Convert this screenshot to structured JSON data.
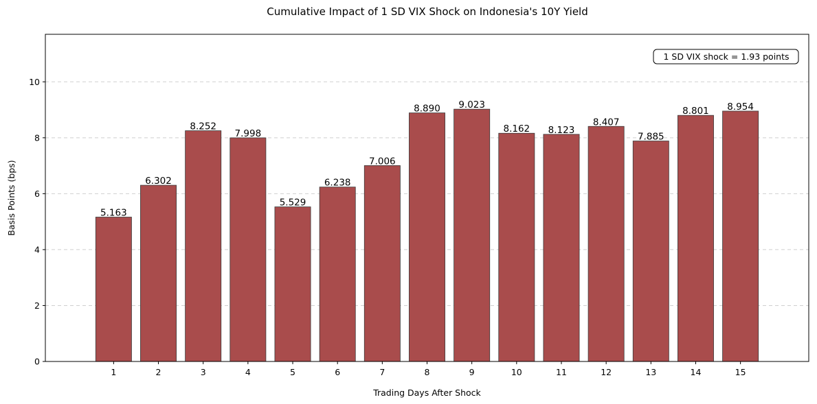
{
  "chart_data": {
    "type": "bar",
    "title": "Cumulative Impact of 1 SD VIX Shock on Indonesia's 10Y Yield",
    "xlabel": "Trading Days After Shock",
    "ylabel": "Basis Points (bps)",
    "categories": [
      "1",
      "2",
      "3",
      "4",
      "5",
      "6",
      "7",
      "8",
      "9",
      "10",
      "11",
      "12",
      "13",
      "14",
      "15"
    ],
    "values": [
      5.163,
      6.302,
      8.252,
      7.998,
      5.529,
      6.238,
      7.006,
      8.89,
      9.023,
      8.162,
      8.123,
      8.407,
      7.885,
      8.801,
      8.954
    ],
    "data_labels": [
      "5.163",
      "6.302",
      "8.252",
      "7.998",
      "5.529",
      "6.238",
      "7.006",
      "8.890",
      "9.023",
      "8.162",
      "8.123",
      "8.407",
      "7.885",
      "8.801",
      "8.954"
    ],
    "ylim": [
      0,
      11.7
    ],
    "yticks": [
      0,
      2,
      4,
      6,
      8,
      10
    ],
    "grid": "y-dashed",
    "annotation": "1 SD VIX shock = 1.93 points",
    "annotation_position": "top-right",
    "bar_color": "#a94c4c",
    "bar_edge_color": "#3a3a3a"
  }
}
